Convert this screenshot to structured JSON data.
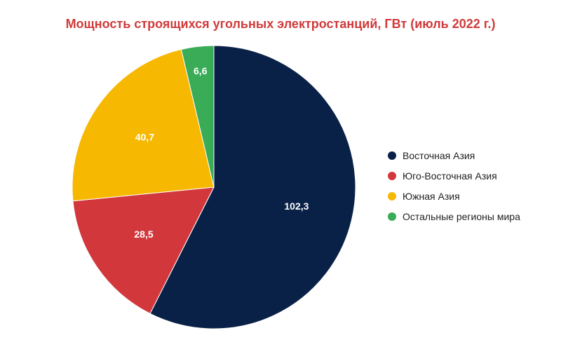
{
  "chart_data": {
    "type": "pie",
    "title": "Мощность строящихся угольных электростанций, ГВт (июль 2022 г.)",
    "categories": [
      "Восточная Азия",
      "Юго-Восточная Азия",
      "Южная Азия",
      "Остальные регионы мира"
    ],
    "values": [
      102.3,
      28.5,
      40.7,
      6.6
    ],
    "value_labels": [
      "102,3",
      "28,5",
      "40,7",
      "6,6"
    ],
    "colors": [
      "#0a2147",
      "#d2373c",
      "#f6b800",
      "#3aab57"
    ],
    "start_angle": "12 o'clock",
    "direction": "clockwise",
    "legend_placement": "right"
  }
}
